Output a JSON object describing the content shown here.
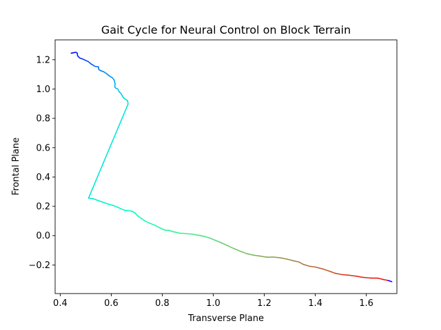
{
  "chart_data": {
    "type": "line",
    "title": "Gait Cycle for Neural Control on Block Terrain",
    "xlabel": "Transverse Plane",
    "ylabel": "Frontal Plane",
    "xlim": [
      0.38,
      1.72
    ],
    "ylim": [
      -0.395,
      1.335
    ],
    "xticks": [
      0.4,
      0.6,
      0.8,
      1.0,
      1.2,
      1.4,
      1.6
    ],
    "yticks": [
      -0.2,
      0.0,
      0.2,
      0.4,
      0.6,
      0.8,
      1.0,
      1.2
    ],
    "x_tick_labels": [
      "0.4",
      "0.6",
      "0.8",
      "1.0",
      "1.2",
      "1.4",
      "1.6"
    ],
    "y_tick_labels": [
      "−0.2",
      "0.0",
      "0.2",
      "0.4",
      "0.6",
      "0.8",
      "1.0",
      "1.2"
    ],
    "grid": false,
    "colormap": "rainbow",
    "series": [
      {
        "points": [
          [
            0.443,
            1.244
          ],
          [
            0.453,
            1.248
          ],
          [
            0.462,
            1.25
          ],
          [
            0.467,
            1.244
          ],
          [
            0.468,
            1.226
          ],
          [
            0.476,
            1.212
          ],
          [
            0.487,
            1.205
          ],
          [
            0.497,
            1.197
          ],
          [
            0.51,
            1.187
          ],
          [
            0.52,
            1.172
          ],
          [
            0.526,
            1.166
          ],
          [
            0.535,
            1.155
          ],
          [
            0.55,
            1.151
          ],
          [
            0.551,
            1.133
          ],
          [
            0.56,
            1.124
          ],
          [
            0.571,
            1.117
          ],
          [
            0.582,
            1.104
          ],
          [
            0.592,
            1.09
          ],
          [
            0.604,
            1.077
          ],
          [
            0.611,
            1.063
          ],
          [
            0.613,
            1.052
          ],
          [
            0.615,
            1.034
          ],
          [
            0.614,
            1.014
          ],
          [
            0.619,
            1.004
          ],
          [
            0.625,
            1.001
          ],
          [
            0.631,
            0.982
          ],
          [
            0.639,
            0.967
          ],
          [
            0.645,
            0.948
          ],
          [
            0.65,
            0.937
          ],
          [
            0.657,
            0.928
          ],
          [
            0.664,
            0.921
          ],
          [
            0.666,
            0.897
          ],
          [
            0.511,
            0.256
          ],
          [
            0.531,
            0.251
          ],
          [
            0.546,
            0.241
          ],
          [
            0.566,
            0.229
          ],
          [
            0.588,
            0.215
          ],
          [
            0.608,
            0.206
          ],
          [
            0.625,
            0.194
          ],
          [
            0.64,
            0.182
          ],
          [
            0.653,
            0.172
          ],
          [
            0.67,
            0.17
          ],
          [
            0.681,
            0.167
          ],
          [
            0.693,
            0.155
          ],
          [
            0.703,
            0.136
          ],
          [
            0.716,
            0.12
          ],
          [
            0.731,
            0.101
          ],
          [
            0.752,
            0.084
          ],
          [
            0.772,
            0.07
          ],
          [
            0.793,
            0.051
          ],
          [
            0.812,
            0.037
          ],
          [
            0.825,
            0.036
          ],
          [
            0.845,
            0.026
          ],
          [
            0.868,
            0.017
          ],
          [
            0.894,
            0.014
          ],
          [
            0.918,
            0.01
          ],
          [
            0.948,
            0.001
          ],
          [
            0.967,
            -0.006
          ],
          [
            0.989,
            -0.018
          ],
          [
            1.011,
            -0.034
          ],
          [
            1.033,
            -0.05
          ],
          [
            1.055,
            -0.067
          ],
          [
            1.082,
            -0.089
          ],
          [
            1.108,
            -0.108
          ],
          [
            1.134,
            -0.124
          ],
          [
            1.16,
            -0.134
          ],
          [
            1.183,
            -0.139
          ],
          [
            1.209,
            -0.147
          ],
          [
            1.235,
            -0.146
          ],
          [
            1.262,
            -0.151
          ],
          [
            1.289,
            -0.16
          ],
          [
            1.316,
            -0.172
          ],
          [
            1.336,
            -0.18
          ],
          [
            1.353,
            -0.196
          ],
          [
            1.378,
            -0.209
          ],
          [
            1.4,
            -0.214
          ],
          [
            1.429,
            -0.227
          ],
          [
            1.455,
            -0.242
          ],
          [
            1.479,
            -0.257
          ],
          [
            1.506,
            -0.266
          ],
          [
            1.532,
            -0.27
          ],
          [
            1.563,
            -0.277
          ],
          [
            1.584,
            -0.284
          ],
          [
            1.615,
            -0.289
          ],
          [
            1.646,
            -0.29
          ],
          [
            1.666,
            -0.299
          ],
          [
            1.686,
            -0.306
          ],
          [
            1.7,
            -0.314
          ]
        ]
      }
    ]
  }
}
